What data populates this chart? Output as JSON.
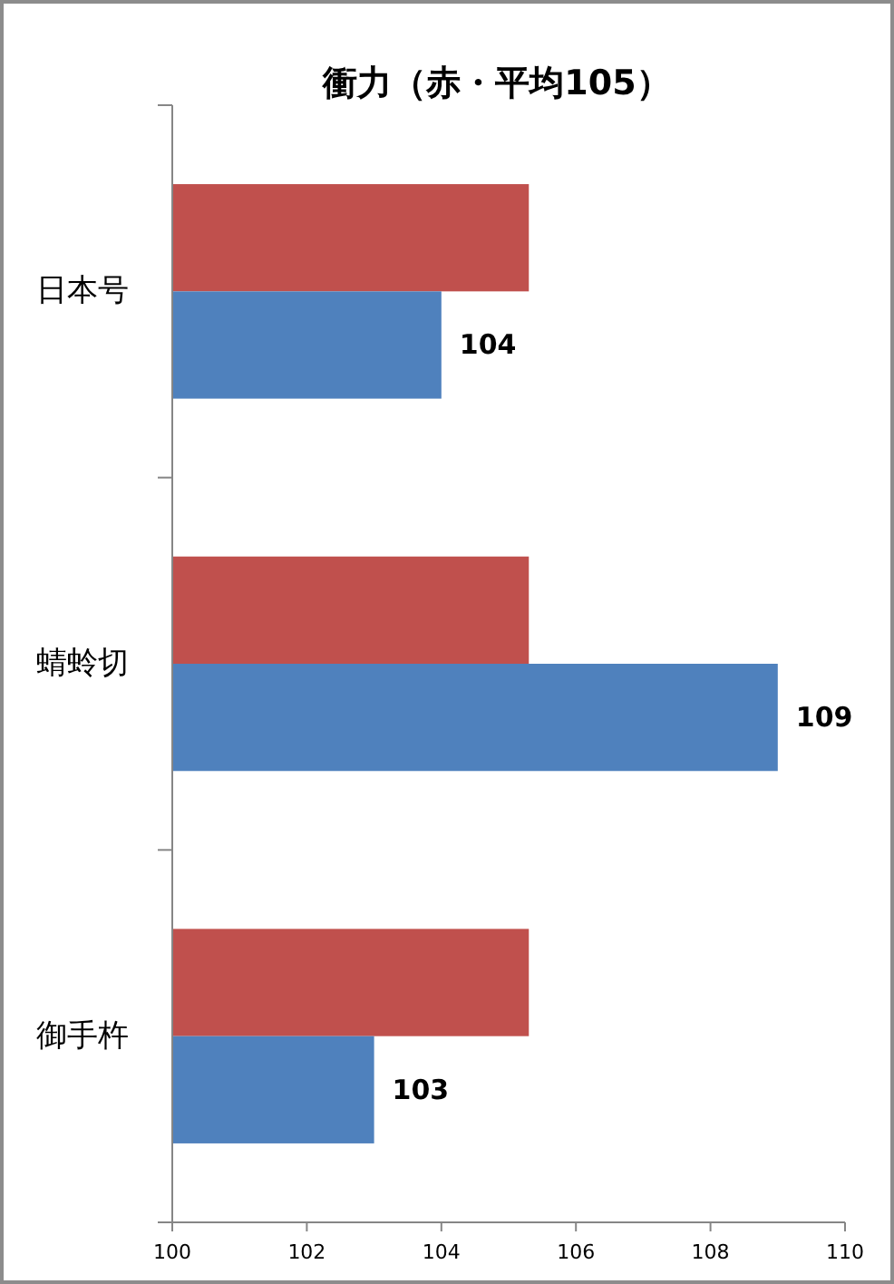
{
  "chart_data": {
    "type": "bar",
    "title": "衝力（赤・平均105）",
    "orientation": "horizontal",
    "categories": [
      "日本号",
      "蜻蛉切",
      "御手杵"
    ],
    "series": [
      {
        "color": "#c0504d",
        "values": [
          105.3,
          105.3,
          105.3
        ]
      },
      {
        "color": "#4f81bd",
        "values": [
          104,
          109,
          103
        ],
        "value_labels": [
          "104",
          "109",
          "103"
        ]
      }
    ],
    "xlim": [
      100,
      110
    ],
    "xticks": [
      100,
      102,
      104,
      106,
      108,
      110
    ]
  }
}
